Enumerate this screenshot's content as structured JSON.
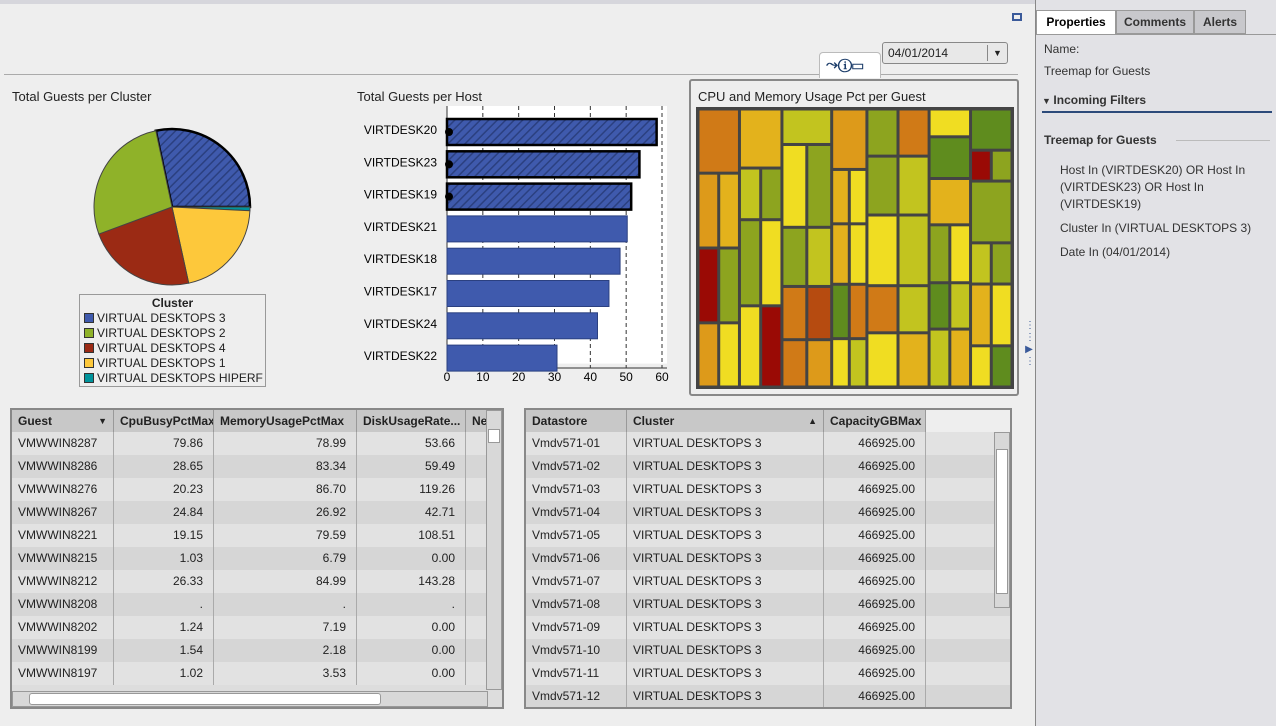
{
  "date_filter": {
    "value": "04/01/2014"
  },
  "toolbar_icons": [
    "link-icon",
    "info-icon",
    "maximize-icon"
  ],
  "pie": {
    "title": "Total Guests per Cluster",
    "legend_title": "Cluster",
    "slices": [
      {
        "label": "VIRTUAL DESKTOPS 3",
        "pct": 28.3,
        "color": "#3f5aad",
        "selected": true
      },
      {
        "label": "VIRTUAL DESKTOPS HIPERF",
        "pct": 0.8,
        "color": "#00939b"
      },
      {
        "label": "VIRTUAL DESKTOPS 1",
        "pct": 20.8,
        "color": "#fdc83b"
      },
      {
        "label": "VIRTUAL DESKTOPS 4",
        "pct": 22.8,
        "color": "#9b2a14"
      },
      {
        "label": "VIRTUAL DESKTOPS 2",
        "pct": 27.3,
        "color": "#8fb229"
      }
    ],
    "legend": [
      {
        "label": "VIRTUAL DESKTOPS 3",
        "color": "#3f5aad"
      },
      {
        "label": "VIRTUAL DESKTOPS 2",
        "color": "#8fb229"
      },
      {
        "label": "VIRTUAL DESKTOPS 4",
        "color": "#9b2a14"
      },
      {
        "label": "VIRTUAL DESKTOPS 1",
        "color": "#fdc83b"
      },
      {
        "label": "VIRTUAL DESKTOPS HIPERF",
        "color": "#00939b"
      }
    ]
  },
  "chart_data": {
    "type": "bar",
    "orientation": "horizontal",
    "title": "Total Guests per Host",
    "categories": [
      "VIRTDESK20",
      "VIRTDESK23",
      "VIRTDESK19",
      "VIRTDESK21",
      "VIRTDESK18",
      "VIRTDESK17",
      "VIRTDESK24",
      "VIRTDESK22"
    ],
    "values": [
      58.5,
      53.7,
      51.4,
      50.3,
      48.3,
      45.2,
      42,
      30.7
    ],
    "selected": [
      "VIRTDESK20",
      "VIRTDESK23",
      "VIRTDESK19"
    ],
    "xlim": [
      0,
      60
    ],
    "ticks": [
      "0",
      "10",
      "20",
      "30",
      "40",
      "50",
      "60"
    ],
    "color": "#3f5aad",
    "grid": true
  },
  "treemap": {
    "title": "CPU and Memory Usage Pct per Guest",
    "palette": [
      "#d07a17",
      "#e3b21c",
      "#c2c41f",
      "#f0dd22",
      "#8da41f",
      "#5f8c1e",
      "#9a0a05",
      "#b64b10",
      "#dd9a1a"
    ]
  },
  "guest_table": {
    "columns": [
      "Guest",
      "CpuBusyPctMax",
      "MemoryUsagePctMax",
      "DiskUsageRate...",
      "Ne"
    ],
    "rows": [
      [
        "VMWWIN8287",
        "79.86",
        "78.99",
        "53.66"
      ],
      [
        "VMWWIN8286",
        "28.65",
        "83.34",
        "59.49"
      ],
      [
        "VMWWIN8276",
        "20.23",
        "86.70",
        "119.26"
      ],
      [
        "VMWWIN8267",
        "24.84",
        "26.92",
        "42.71"
      ],
      [
        "VMWWIN8221",
        "19.15",
        "79.59",
        "108.51"
      ],
      [
        "VMWWIN8215",
        "1.03",
        "6.79",
        "0.00"
      ],
      [
        "VMWWIN8212",
        "26.33",
        "84.99",
        "143.28"
      ],
      [
        "VMWWIN8208",
        ".",
        ".",
        "."
      ],
      [
        "VMWWIN8202",
        "1.24",
        "7.19",
        "0.00"
      ],
      [
        "VMWWIN8199",
        "1.54",
        "2.18",
        "0.00"
      ],
      [
        "VMWWIN8197",
        "1.02",
        "3.53",
        "0.00"
      ]
    ]
  },
  "datastore_table": {
    "columns": [
      "Datastore",
      "Cluster",
      "CapacityGBMax"
    ],
    "rows": [
      [
        "Vmdv571-01",
        "VIRTUAL DESKTOPS 3",
        "466925.00"
      ],
      [
        "Vmdv571-02",
        "VIRTUAL DESKTOPS 3",
        "466925.00"
      ],
      [
        "Vmdv571-03",
        "VIRTUAL DESKTOPS 3",
        "466925.00"
      ],
      [
        "Vmdv571-04",
        "VIRTUAL DESKTOPS 3",
        "466925.00"
      ],
      [
        "Vmdv571-05",
        "VIRTUAL DESKTOPS 3",
        "466925.00"
      ],
      [
        "Vmdv571-06",
        "VIRTUAL DESKTOPS 3",
        "466925.00"
      ],
      [
        "Vmdv571-07",
        "VIRTUAL DESKTOPS 3",
        "466925.00"
      ],
      [
        "Vmdv571-08",
        "VIRTUAL DESKTOPS 3",
        "466925.00"
      ],
      [
        "Vmdv571-09",
        "VIRTUAL DESKTOPS 3",
        "466925.00"
      ],
      [
        "Vmdv571-10",
        "VIRTUAL DESKTOPS 3",
        "466925.00"
      ],
      [
        "Vmdv571-11",
        "VIRTUAL DESKTOPS 3",
        "466925.00"
      ],
      [
        "Vmdv571-12",
        "VIRTUAL DESKTOPS 3",
        "466925.00"
      ]
    ]
  },
  "right_panel": {
    "tabs": [
      "Properties",
      "Comments",
      "Alerts"
    ],
    "name_label": "Name:",
    "name_value": "Treemap for Guests",
    "incoming_filters": "Incoming Filters",
    "section_title": "Treemap for Guests",
    "filters": [
      "Host In (VIRTDESK20) OR Host In (VIRTDESK23) OR Host In (VIRTDESK19)",
      "Cluster In (VIRTUAL DESKTOPS 3)",
      "Date In (04/01/2014)"
    ]
  }
}
